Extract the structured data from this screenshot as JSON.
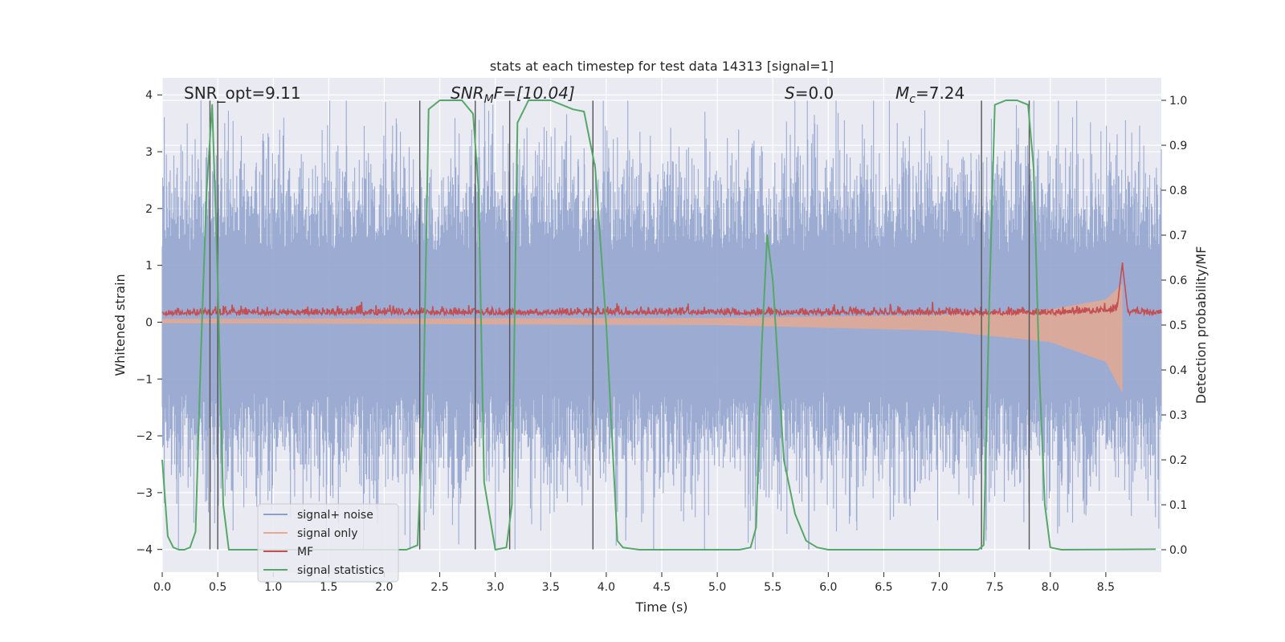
{
  "chart_data": {
    "type": "line",
    "title": "stats at each timestep for test data 14313 [signal=1]",
    "xlabel": "Time (s)",
    "ylabel": "Whitened strain",
    "y2label": "Detection probability/MF",
    "xlim": [
      0.0,
      9.0
    ],
    "ylim": [
      -4.4,
      4.3
    ],
    "y2lim": [
      -0.05,
      1.05
    ],
    "x_ticks": [
      "0.0",
      "0.5",
      "1.0",
      "1.5",
      "2.0",
      "2.5",
      "3.0",
      "3.5",
      "4.0",
      "4.5",
      "5.0",
      "5.5",
      "6.0",
      "6.5",
      "7.0",
      "7.5",
      "8.0",
      "8.5"
    ],
    "y_ticks": [
      "4",
      "3",
      "2",
      "1",
      "0",
      "−1",
      "−2",
      "−3",
      "−4"
    ],
    "y2_ticks": [
      "1.0",
      "0.9",
      "0.8",
      "0.7",
      "0.6",
      "0.5",
      "0.4",
      "0.3",
      "0.2",
      "0.1",
      "0.0"
    ],
    "grid": true,
    "legend_position": "lower-left",
    "annotations": {
      "snr_opt": "SNR_opt=9.11",
      "snr_mf_base": "SNR",
      "snr_mf_sub": "M",
      "snr_mf_rest": "F=[10.04]",
      "s_italic": "S",
      "s_rest": "=0.0",
      "mc_italic": "M",
      "mc_sub": "c",
      "mc_rest": "=7.24"
    },
    "series": [
      {
        "name": "signal+ noise",
        "color": "#8da0cb",
        "axis": "left",
        "envelope_approx": 2.2
      },
      {
        "name": "signal only",
        "color": "#e8a98f",
        "axis": "left",
        "merger_time": 8.65,
        "amplitude_points": [
          [
            0.0,
            0.02
          ],
          [
            5.0,
            0.05
          ],
          [
            7.0,
            0.15
          ],
          [
            8.0,
            0.35
          ],
          [
            8.5,
            0.7
          ],
          [
            8.65,
            1.25
          ]
        ]
      },
      {
        "name": "MF",
        "color": "#c44e52",
        "axis": "left",
        "baseline": 0.13,
        "peak_time": 8.65,
        "peak_value": 1.0
      },
      {
        "name": "signal statistics",
        "color": "#55a868",
        "axis": "right",
        "x": [
          0.0,
          0.05,
          0.1,
          0.15,
          0.2,
          0.25,
          0.3,
          0.35,
          0.4,
          0.45,
          0.5,
          0.55,
          0.6,
          0.65,
          0.7,
          2.2,
          2.3,
          2.35,
          2.4,
          2.5,
          2.6,
          2.7,
          2.8,
          2.85,
          2.9,
          3.0,
          3.1,
          3.15,
          3.2,
          3.3,
          3.4,
          3.5,
          3.6,
          3.7,
          3.8,
          3.9,
          4.0,
          4.1,
          4.15,
          4.3,
          5.2,
          5.3,
          5.35,
          5.4,
          5.45,
          5.5,
          5.55,
          5.6,
          5.7,
          5.8,
          5.9,
          6.0,
          6.2,
          7.35,
          7.4,
          7.45,
          7.5,
          7.6,
          7.7,
          7.8,
          7.85,
          7.9,
          7.95,
          8.0,
          8.1,
          8.95
        ],
        "y": [
          0.2,
          0.03,
          0.005,
          0.0,
          0.0,
          0.005,
          0.04,
          0.45,
          0.8,
          0.99,
          0.6,
          0.1,
          0.0,
          0.0,
          0.0,
          0.0,
          0.01,
          0.3,
          0.98,
          1.0,
          1.0,
          1.0,
          0.97,
          0.8,
          0.15,
          0.0,
          0.005,
          0.1,
          0.95,
          1.0,
          1.0,
          1.0,
          0.99,
          0.98,
          0.975,
          0.85,
          0.5,
          0.02,
          0.005,
          0.0,
          0.0,
          0.005,
          0.05,
          0.45,
          0.7,
          0.6,
          0.4,
          0.2,
          0.08,
          0.02,
          0.005,
          0.0,
          0.0,
          0.0,
          0.01,
          0.55,
          0.99,
          1.0,
          1.0,
          0.99,
          0.85,
          0.4,
          0.1,
          0.005,
          0.0,
          0.001
        ]
      },
      {
        "name": "",
        "color": "#555555",
        "axis": "left",
        "type": "vlines",
        "x": [
          0.43,
          0.5,
          2.32,
          2.82,
          3.13,
          3.88,
          7.38,
          7.81
        ]
      }
    ]
  }
}
